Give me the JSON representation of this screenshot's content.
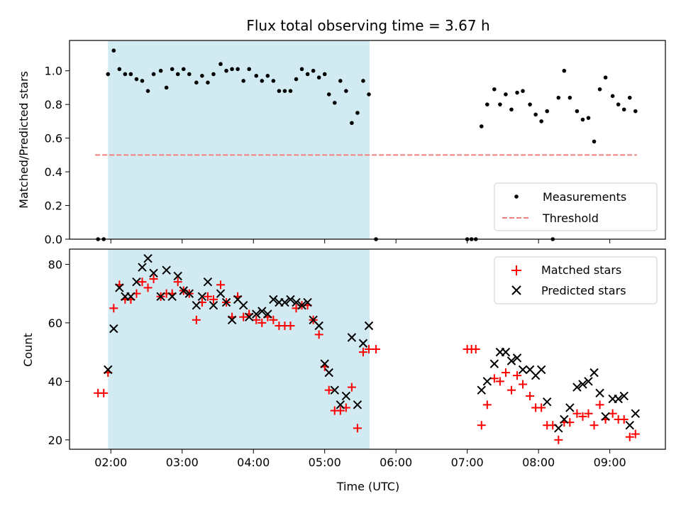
{
  "figure": {
    "title": "Flux total observing time = 3.67 h",
    "xlabel": "Time (UTC)",
    "x_ticks": [
      {
        "value": 2,
        "label": "02:00"
      },
      {
        "value": 3,
        "label": "03:00"
      },
      {
        "value": 4,
        "label": "04:00"
      },
      {
        "value": 5,
        "label": "05:00"
      },
      {
        "value": 6,
        "label": "06:00"
      },
      {
        "value": 7,
        "label": "07:00"
      },
      {
        "value": 8,
        "label": "08:00"
      },
      {
        "value": 9,
        "label": "09:00"
      }
    ],
    "xlim": [
      1.42,
      9.78
    ],
    "shaded_span": {
      "start": 1.96,
      "end": 5.63,
      "color": "#add8e6"
    }
  },
  "chart_data": [
    {
      "type": "scatter",
      "ylabel": "Matched/Predicted stars",
      "ylim": [
        0,
        1.18
      ],
      "y_ticks": [
        {
          "value": 0.0,
          "label": "0.0"
        },
        {
          "value": 0.2,
          "label": "0.2"
        },
        {
          "value": 0.4,
          "label": "0.4"
        },
        {
          "value": 0.6,
          "label": "0.6"
        },
        {
          "value": 0.8,
          "label": "0.8"
        },
        {
          "value": 1.0,
          "label": "1.0"
        }
      ],
      "legend_position": "lower-right",
      "series": [
        {
          "name": "Measurements",
          "color": "#000000",
          "marker": "dot",
          "points": [
            [
              1.82,
              0
            ],
            [
              1.9,
              0
            ],
            [
              1.96,
              0.98
            ],
            [
              2.04,
              1.12
            ],
            [
              2.12,
              1.01
            ],
            [
              2.2,
              0.98
            ],
            [
              2.28,
              0.98
            ],
            [
              2.36,
              0.95
            ],
            [
              2.44,
              0.94
            ],
            [
              2.52,
              0.88
            ],
            [
              2.6,
              0.98
            ],
            [
              2.7,
              1.0
            ],
            [
              2.78,
              0.9
            ],
            [
              2.86,
              1.01
            ],
            [
              2.94,
              0.98
            ],
            [
              3.02,
              1.01
            ],
            [
              3.1,
              0.98
            ],
            [
              3.2,
              0.93
            ],
            [
              3.28,
              0.97
            ],
            [
              3.36,
              0.93
            ],
            [
              3.44,
              0.98
            ],
            [
              3.54,
              1.04
            ],
            [
              3.62,
              1.0
            ],
            [
              3.7,
              1.01
            ],
            [
              3.78,
              1.01
            ],
            [
              3.86,
              0.94
            ],
            [
              3.94,
              1.01
            ],
            [
              4.04,
              0.97
            ],
            [
              4.12,
              0.94
            ],
            [
              4.2,
              0.97
            ],
            [
              4.28,
              0.94
            ],
            [
              4.36,
              0.88
            ],
            [
              4.44,
              0.88
            ],
            [
              4.52,
              0.88
            ],
            [
              4.6,
              0.95
            ],
            [
              4.68,
              1.01
            ],
            [
              4.76,
              0.98
            ],
            [
              4.84,
              1.0
            ],
            [
              4.92,
              0.96
            ],
            [
              5.0,
              0.98
            ],
            [
              5.06,
              0.86
            ],
            [
              5.14,
              0.81
            ],
            [
              5.22,
              0.94
            ],
            [
              5.3,
              0.88
            ],
            [
              5.38,
              0.69
            ],
            [
              5.46,
              0.75
            ],
            [
              5.54,
              0.94
            ],
            [
              5.62,
              0.86
            ],
            [
              5.72,
              0
            ],
            [
              7.0,
              0
            ],
            [
              7.06,
              0
            ],
            [
              7.12,
              0
            ],
            [
              7.2,
              0.67
            ],
            [
              7.28,
              0.8
            ],
            [
              7.38,
              0.89
            ],
            [
              7.46,
              0.8
            ],
            [
              7.54,
              0.86
            ],
            [
              7.62,
              0.77
            ],
            [
              7.7,
              0.87
            ],
            [
              7.78,
              0.88
            ],
            [
              7.88,
              0.8
            ],
            [
              7.96,
              0.74
            ],
            [
              8.04,
              0.7
            ],
            [
              8.12,
              0.76
            ],
            [
              8.2,
              0
            ],
            [
              8.28,
              0.84
            ],
            [
              8.36,
              1.0
            ],
            [
              8.44,
              0.84
            ],
            [
              8.54,
              0.76
            ],
            [
              8.62,
              0.71
            ],
            [
              8.7,
              0.72
            ],
            [
              8.78,
              0.58
            ],
            [
              8.86,
              0.89
            ],
            [
              8.94,
              0.96
            ],
            [
              9.04,
              0.85
            ],
            [
              9.12,
              0.8
            ],
            [
              9.2,
              0.77
            ],
            [
              9.28,
              0.84
            ],
            [
              9.36,
              0.76
            ]
          ]
        },
        {
          "name": "Threshold",
          "color": "#f08080",
          "line": "dashed",
          "points": [
            [
              1.78,
              0.5
            ],
            [
              9.38,
              0.5
            ]
          ]
        }
      ]
    },
    {
      "type": "scatter",
      "ylabel": "Count",
      "ylim": [
        16.8,
        85.2
      ],
      "y_ticks": [
        {
          "value": 20,
          "label": "20"
        },
        {
          "value": 40,
          "label": "40"
        },
        {
          "value": 60,
          "label": "60"
        },
        {
          "value": 80,
          "label": "80"
        }
      ],
      "legend_position": "upper-right",
      "series": [
        {
          "name": "Matched stars",
          "color": "#ff0000",
          "marker": "plus",
          "points": [
            [
              1.82,
              36
            ],
            [
              1.9,
              36
            ],
            [
              1.96,
              43
            ],
            [
              2.04,
              65
            ],
            [
              2.12,
              73
            ],
            [
              2.2,
              68
            ],
            [
              2.28,
              68
            ],
            [
              2.36,
              70
            ],
            [
              2.44,
              74
            ],
            [
              2.52,
              72
            ],
            [
              2.6,
              75
            ],
            [
              2.7,
              69
            ],
            [
              2.78,
              70
            ],
            [
              2.86,
              70
            ],
            [
              2.94,
              74
            ],
            [
              3.02,
              71
            ],
            [
              3.1,
              70
            ],
            [
              3.2,
              61
            ],
            [
              3.28,
              67
            ],
            [
              3.36,
              69
            ],
            [
              3.44,
              68
            ],
            [
              3.54,
              73
            ],
            [
              3.62,
              67
            ],
            [
              3.7,
              62
            ],
            [
              3.78,
              69
            ],
            [
              3.86,
              62
            ],
            [
              3.94,
              63
            ],
            [
              4.04,
              61
            ],
            [
              4.12,
              60
            ],
            [
              4.2,
              62
            ],
            [
              4.28,
              61
            ],
            [
              4.36,
              59
            ],
            [
              4.44,
              59
            ],
            [
              4.52,
              59
            ],
            [
              4.6,
              65
            ],
            [
              4.68,
              66
            ],
            [
              4.76,
              66
            ],
            [
              4.84,
              61
            ],
            [
              4.92,
              56
            ],
            [
              5.0,
              45
            ],
            [
              5.06,
              37
            ],
            [
              5.14,
              30
            ],
            [
              5.22,
              30
            ],
            [
              5.3,
              31
            ],
            [
              5.38,
              38
            ],
            [
              5.46,
              24
            ],
            [
              5.54,
              50
            ],
            [
              5.62,
              51
            ],
            [
              5.72,
              51
            ],
            [
              7.0,
              51
            ],
            [
              7.06,
              51
            ],
            [
              7.12,
              51
            ],
            [
              7.2,
              25
            ],
            [
              7.28,
              32
            ],
            [
              7.38,
              41
            ],
            [
              7.46,
              40
            ],
            [
              7.54,
              43
            ],
            [
              7.62,
              37
            ],
            [
              7.7,
              42
            ],
            [
              7.78,
              39
            ],
            [
              7.88,
              35
            ],
            [
              7.96,
              31
            ],
            [
              8.04,
              31
            ],
            [
              8.12,
              25
            ],
            [
              8.2,
              25
            ],
            [
              8.28,
              20
            ],
            [
              8.36,
              26
            ],
            [
              8.44,
              26
            ],
            [
              8.54,
              29
            ],
            [
              8.62,
              28
            ],
            [
              8.7,
              29
            ],
            [
              8.78,
              25
            ],
            [
              8.86,
              32
            ],
            [
              8.94,
              27
            ],
            [
              9.04,
              29
            ],
            [
              9.12,
              27
            ],
            [
              9.2,
              27
            ],
            [
              9.28,
              21
            ],
            [
              9.36,
              22
            ]
          ]
        },
        {
          "name": "Predicted stars",
          "color": "#000000",
          "marker": "x",
          "points": [
            [
              1.96,
              44
            ],
            [
              2.04,
              58
            ],
            [
              2.12,
              72
            ],
            [
              2.2,
              69
            ],
            [
              2.28,
              69
            ],
            [
              2.36,
              74
            ],
            [
              2.44,
              79
            ],
            [
              2.52,
              82
            ],
            [
              2.6,
              77
            ],
            [
              2.7,
              69
            ],
            [
              2.78,
              78
            ],
            [
              2.86,
              69
            ],
            [
              2.94,
              76
            ],
            [
              3.02,
              71
            ],
            [
              3.1,
              70
            ],
            [
              3.2,
              66
            ],
            [
              3.28,
              69
            ],
            [
              3.36,
              74
            ],
            [
              3.44,
              66
            ],
            [
              3.54,
              70
            ],
            [
              3.62,
              67
            ],
            [
              3.7,
              61
            ],
            [
              3.78,
              68
            ],
            [
              3.86,
              66
            ],
            [
              3.94,
              62
            ],
            [
              4.04,
              63
            ],
            [
              4.12,
              64
            ],
            [
              4.2,
              63
            ],
            [
              4.28,
              68
            ],
            [
              4.36,
              67
            ],
            [
              4.44,
              67
            ],
            [
              4.52,
              68
            ],
            [
              4.6,
              67
            ],
            [
              4.68,
              66
            ],
            [
              4.76,
              67
            ],
            [
              4.84,
              61
            ],
            [
              4.92,
              59
            ],
            [
              5.0,
              46
            ],
            [
              5.06,
              43
            ],
            [
              5.14,
              37
            ],
            [
              5.22,
              32
            ],
            [
              5.3,
              35
            ],
            [
              5.38,
              55
            ],
            [
              5.46,
              32
            ],
            [
              5.54,
              53
            ],
            [
              5.62,
              59
            ],
            [
              7.2,
              37
            ],
            [
              7.28,
              40
            ],
            [
              7.38,
              46
            ],
            [
              7.46,
              50
            ],
            [
              7.54,
              50
            ],
            [
              7.62,
              47
            ],
            [
              7.7,
              48
            ],
            [
              7.78,
              44
            ],
            [
              7.88,
              44
            ],
            [
              7.96,
              42
            ],
            [
              8.04,
              44
            ],
            [
              8.12,
              33
            ],
            [
              8.28,
              24
            ],
            [
              8.36,
              27
            ],
            [
              8.44,
              31
            ],
            [
              8.54,
              38
            ],
            [
              8.62,
              39
            ],
            [
              8.7,
              40
            ],
            [
              8.78,
              43
            ],
            [
              8.86,
              36
            ],
            [
              8.94,
              28
            ],
            [
              9.04,
              34
            ],
            [
              9.12,
              34
            ],
            [
              9.2,
              35
            ],
            [
              9.28,
              25
            ],
            [
              9.36,
              29
            ]
          ]
        }
      ]
    }
  ]
}
